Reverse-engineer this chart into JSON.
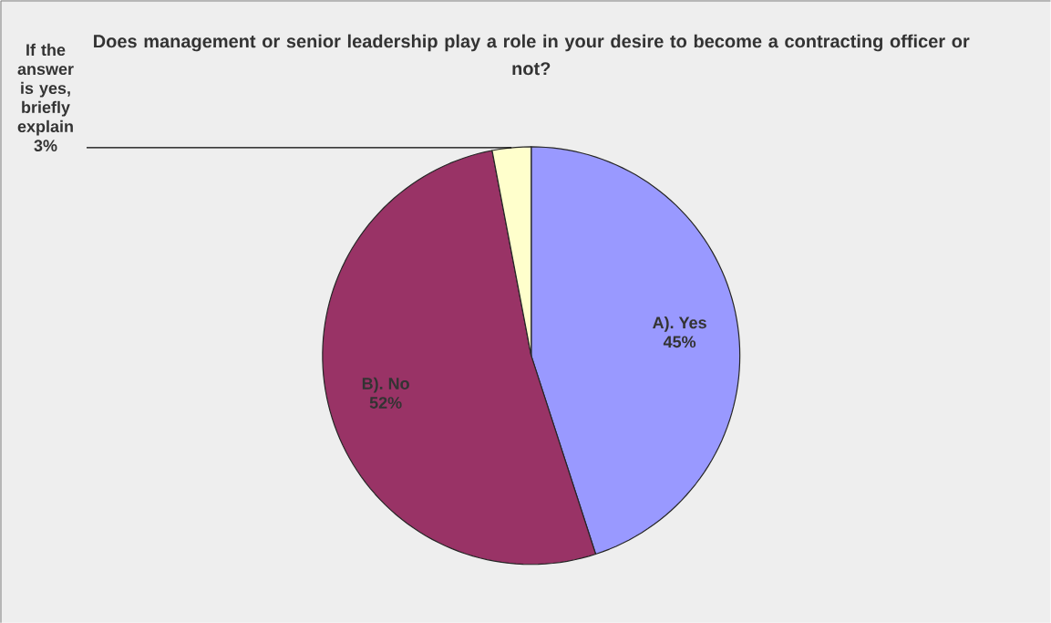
{
  "chart_data": {
    "type": "pie",
    "title": "Does management or senior leadership play a role in your desire to become a contracting officer or not?",
    "categories": [
      "A). Yes",
      "B).  No",
      "If the answer is yes, briefly explain"
    ],
    "values": [
      45,
      52,
      3
    ],
    "colors": [
      "#9999ff",
      "#993366",
      "#ffffcc"
    ],
    "value_labels": [
      "45%",
      "52%",
      "3%"
    ]
  }
}
